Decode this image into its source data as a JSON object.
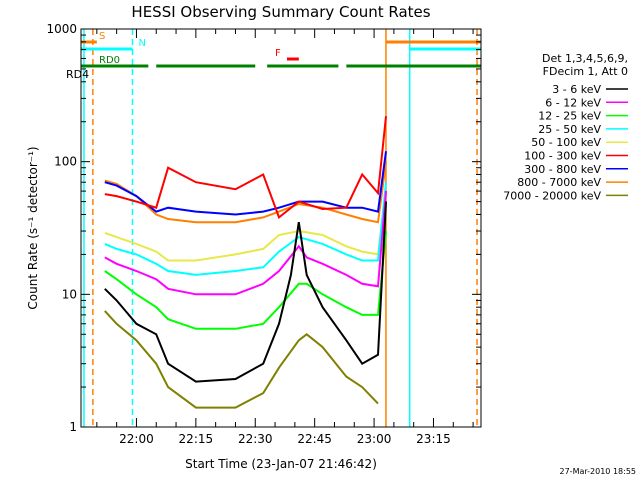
{
  "chart_data": {
    "type": "line",
    "title": "HESSI Observing Summary Count Rates",
    "xlabel": "Start Time (23-Jan-07 21:46:42)",
    "ylabel": "Count Rate (s⁻¹ detector⁻¹)",
    "y_scale": "log",
    "ylim": [
      1,
      1000
    ],
    "y_ticks": [
      1,
      10,
      100,
      1000
    ],
    "y_tick_labels": [
      "1",
      "10",
      "100",
      "1000"
    ],
    "xlim": [
      "21:46",
      "23:27"
    ],
    "x_ticks": [
      "22:00",
      "22:15",
      "22:30",
      "22:45",
      "23:00",
      "23:15"
    ],
    "legend_position": "right",
    "legend_header": [
      "Det 1,3,4,5,6,9,",
      "FDecim 1, Att 0"
    ],
    "series": [
      {
        "name": "3 - 6 keV",
        "color": "#000000",
        "x": [
          "21:52",
          "21:55",
          "22:00",
          "22:05",
          "22:08",
          "22:15",
          "22:25",
          "22:32",
          "22:36",
          "22:39",
          "22:41",
          "22:43",
          "22:47",
          "22:53",
          "22:57",
          "23:01",
          "23:03"
        ],
        "values": [
          11,
          9,
          6,
          5,
          3,
          2.2,
          2.3,
          3,
          6,
          14,
          35,
          14,
          8,
          4.5,
          3,
          3.5,
          50
        ]
      },
      {
        "name": "6 - 12 keV",
        "color": "#ff00ff",
        "x": [
          "21:52",
          "21:55",
          "22:00",
          "22:05",
          "22:08",
          "22:15",
          "22:25",
          "22:32",
          "22:36",
          "22:41",
          "22:43",
          "22:47",
          "22:53",
          "22:57",
          "23:01",
          "23:03"
        ],
        "values": [
          19,
          17,
          15,
          13,
          11,
          10,
          10,
          12,
          15,
          23,
          19,
          17,
          14,
          12,
          11.5,
          60
        ]
      },
      {
        "name": "12 - 25 keV",
        "color": "#00ff00",
        "x": [
          "21:52",
          "21:55",
          "22:00",
          "22:05",
          "22:08",
          "22:15",
          "22:25",
          "22:32",
          "22:36",
          "22:41",
          "22:43",
          "22:47",
          "22:53",
          "22:57",
          "23:01",
          "23:03"
        ],
        "values": [
          15,
          13,
          10,
          8,
          6.5,
          5.5,
          5.5,
          6,
          8,
          12,
          12,
          10,
          8,
          7,
          7,
          30
        ]
      },
      {
        "name": "25 - 50 keV",
        "color": "#00ffff",
        "x": [
          "21:52",
          "21:55",
          "22:00",
          "22:05",
          "22:08",
          "22:15",
          "22:25",
          "22:32",
          "22:36",
          "22:41",
          "22:43",
          "22:47",
          "22:53",
          "22:57",
          "23:01",
          "23:03"
        ],
        "values": [
          24,
          22,
          20,
          17,
          15,
          14,
          15,
          16,
          21,
          27,
          26,
          24,
          20,
          18,
          18,
          70
        ]
      },
      {
        "name": "50 - 100 keV",
        "color": "#e8e84a",
        "x": [
          "21:52",
          "21:55",
          "22:00",
          "22:05",
          "22:08",
          "22:15",
          "22:25",
          "22:32",
          "22:36",
          "22:41",
          "22:47",
          "22:53",
          "22:57",
          "23:01",
          "23:03"
        ],
        "values": [
          29,
          27,
          24,
          21,
          18,
          18,
          20,
          22,
          28,
          30,
          28,
          23,
          21,
          20,
          60
        ]
      },
      {
        "name": "100 - 300 keV",
        "color": "#ff0000",
        "x": [
          "21:52",
          "21:55",
          "22:00",
          "22:05",
          "22:08",
          "22:15",
          "22:25",
          "22:32",
          "22:36",
          "22:41",
          "22:47",
          "22:53",
          "22:57",
          "23:01",
          "23:03"
        ],
        "values": [
          57,
          55,
          50,
          45,
          90,
          70,
          62,
          80,
          38,
          50,
          44,
          45,
          80,
          58,
          220
        ]
      },
      {
        "name": "300 - 800 keV",
        "color": "#0000ff",
        "x": [
          "21:52",
          "21:55",
          "22:00",
          "22:05",
          "22:08",
          "22:15",
          "22:25",
          "22:32",
          "22:36",
          "22:41",
          "22:47",
          "22:53",
          "22:57",
          "23:01",
          "23:03"
        ],
        "values": [
          70,
          66,
          55,
          42,
          45,
          42,
          40,
          42,
          45,
          50,
          50,
          45,
          45,
          42,
          120
        ]
      },
      {
        "name": "800 - 7000 keV",
        "color": "#ff8000",
        "x": [
          "21:52",
          "21:55",
          "22:00",
          "22:05",
          "22:08",
          "22:15",
          "22:25",
          "22:32",
          "22:36",
          "22:41",
          "22:47",
          "22:53",
          "22:57",
          "23:01",
          "23:03"
        ],
        "values": [
          72,
          68,
          55,
          40,
          37,
          35,
          35,
          38,
          42,
          48,
          45,
          40,
          37,
          35,
          100
        ]
      },
      {
        "name": "7000 - 20000 keV",
        "color": "#808000",
        "x": [
          "21:52",
          "21:55",
          "22:00",
          "22:05",
          "22:08",
          "22:15",
          "22:25",
          "22:32",
          "22:36",
          "22:41",
          "22:43",
          "22:47",
          "22:53",
          "22:57",
          "23:01"
        ],
        "values": [
          7.5,
          6,
          4.5,
          3,
          2,
          1.4,
          1.4,
          1.8,
          2.8,
          4.5,
          5,
          4,
          2.4,
          2,
          1.5
        ]
      }
    ],
    "annotations": [
      {
        "label": "S",
        "color": "#ff8000",
        "segments": [
          [
            "21:46",
            "21:50"
          ],
          [
            "23:03",
            "23:27"
          ]
        ],
        "level": "S"
      },
      {
        "label": "N",
        "color": "#00ffff",
        "segments": [
          [
            "21:46",
            "21:59"
          ],
          [
            "23:09",
            "23:27"
          ]
        ],
        "level": "N"
      },
      {
        "label": "F",
        "color": "#ff0000",
        "segments": [
          [
            "22:38",
            "22:41"
          ]
        ],
        "level": "F"
      },
      {
        "label": "RD0",
        "color": "#008000",
        "segments": [
          [
            "21:46",
            "22:03"
          ],
          [
            "22:05",
            "22:30"
          ],
          [
            "22:33",
            "22:51"
          ],
          [
            "22:53",
            "23:27"
          ]
        ],
        "level": "RD0"
      }
    ],
    "vertical_lines": [
      {
        "time": "21:46:45",
        "color": "#00ffff",
        "style": "solid"
      },
      {
        "time": "21:49",
        "color": "#ff8000",
        "style": "dashed"
      },
      {
        "time": "21:59",
        "color": "#00ffff",
        "style": "dashed"
      },
      {
        "time": "23:03",
        "color": "#ff8000",
        "style": "solid"
      },
      {
        "time": "23:09",
        "color": "#00ffff",
        "style": "solid"
      },
      {
        "time": "23:26",
        "color": "#ff8000",
        "style": "dashed"
      }
    ]
  },
  "left_label": "RD4",
  "footer_date": "27-Mar-2010 18:55"
}
